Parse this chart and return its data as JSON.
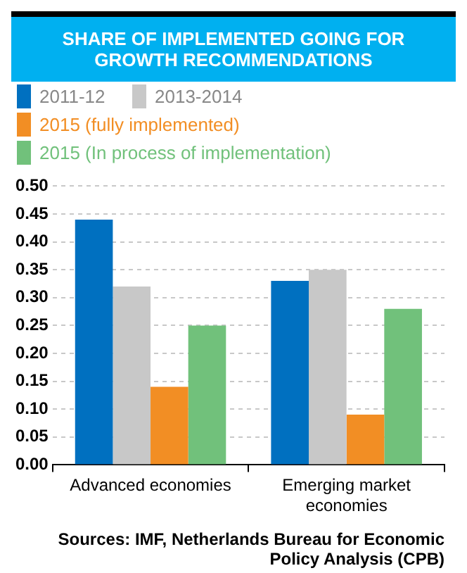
{
  "chart_data": {
    "type": "bar",
    "title": "SHARE OF IMPLEMENTED GOING FOR GROWTH RECOMMENDATIONS",
    "categories": [
      "Advanced economies",
      "Emerging market economies"
    ],
    "series": [
      {
        "name": "2011-12",
        "color": "#0070c0",
        "values": [
          0.44,
          0.33
        ]
      },
      {
        "name": "2013-2014",
        "color": "#c8c8c8",
        "values": [
          0.32,
          0.35
        ]
      },
      {
        "name": "2015 (fully implemented)",
        "color": "#f28e24",
        "values": [
          0.14,
          0.09
        ]
      },
      {
        "name": "2015 (In process of implementation)",
        "color": "#71c17b",
        "values": [
          0.25,
          0.28
        ]
      }
    ],
    "ylim": [
      0,
      0.5
    ],
    "yticks": [
      {
        "value": 0,
        "label": "0.00"
      },
      {
        "value": 0.05,
        "label": "0.05"
      },
      {
        "value": 0.1,
        "label": "0.10"
      },
      {
        "value": 0.15,
        "label": "0.15"
      },
      {
        "value": 0.2,
        "label": "0.20"
      },
      {
        "value": 0.25,
        "label": "0.25"
      },
      {
        "value": 0.3,
        "label": "0.30"
      },
      {
        "value": 0.35,
        "label": "0.35"
      },
      {
        "value": 0.4,
        "label": "0.40"
      },
      {
        "value": 0.45,
        "label": "0.45"
      },
      {
        "value": 0.5,
        "label": "0.50"
      }
    ],
    "grid": "y",
    "legend": "top",
    "annotations": [
      "Sources: IMF, Netherlands Bureau for Economic Policy Analysis (CPB)"
    ]
  }
}
